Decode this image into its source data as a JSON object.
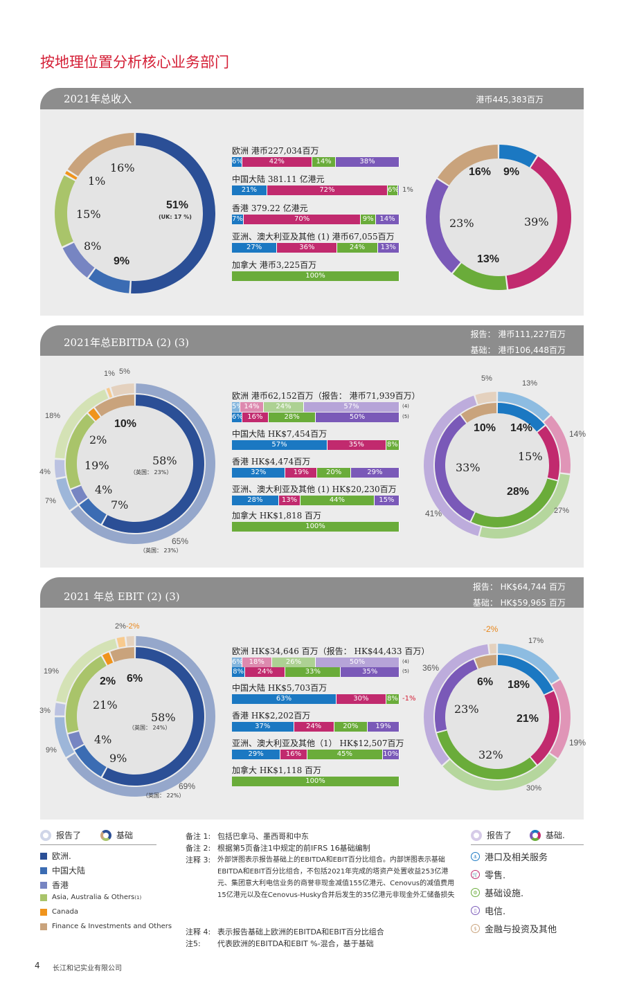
{
  "page": {
    "title": "按地理位置分析核心业务部门",
    "page_number": "4",
    "company": "长江和记实业有限公司"
  },
  "colors": {
    "europe": "#2b4f96",
    "china": "#3b6cb3",
    "hongkong": "#7785c2",
    "asia": "#a9c46a",
    "canada": "#f0941c",
    "finance": "#c9a37c",
    "ports": "#1b78c2",
    "retail": "#c12a6e",
    "infra": "#6aac3a",
    "telecom": "#7a59b8",
    "fin_other": "#c9a37c"
  },
  "chart_data": [
    {
      "type": "pie",
      "panel": "revenue-geo",
      "title": "2021年总收入",
      "total": "港币445,383百万",
      "slices": [
        {
          "name": "欧洲.",
          "value": 51,
          "label": "51%",
          "sub": "(UK: 17 %)"
        },
        {
          "name": "中国大陆",
          "value": 9,
          "label": "9%"
        },
        {
          "name": "香港",
          "value": 8,
          "label": "8%"
        },
        {
          "name": "Asia, Australia & Others",
          "value": 15,
          "label": "15%"
        },
        {
          "name": "Canada",
          "value": 1,
          "label": "1%"
        },
        {
          "name": "Finance & Investments and Others",
          "value": 16,
          "label": "16%"
        }
      ]
    },
    {
      "type": "bar",
      "panel": "revenue-regions",
      "rows": [
        {
          "label": "欧洲 港币227,034百万",
          "segments": [
            6,
            42,
            14,
            38
          ],
          "labels": [
            "6%",
            "42%",
            "14%",
            "38%"
          ]
        },
        {
          "label": "中国大陆 381.11 亿港元",
          "segments": [
            21,
            72,
            6,
            1
          ],
          "labels": [
            "21%",
            "72%",
            "6%",
            "1%"
          ]
        },
        {
          "label": "香港 379.22 亿港元",
          "segments": [
            7,
            70,
            9,
            14
          ],
          "labels": [
            "7%",
            "70%",
            "9%",
            "14%"
          ]
        },
        {
          "label": "亚洲、澳大利亚及其他 (1) 港币67,055百万",
          "segments": [
            27,
            36,
            24,
            13
          ],
          "labels": [
            "27%",
            "36%",
            "24%",
            "13%"
          ]
        },
        {
          "label": "加拿大 港币3,225百万",
          "segments": [
            0,
            0,
            100,
            0
          ],
          "labels": [
            "",
            "",
            "100%",
            ""
          ]
        }
      ]
    },
    {
      "type": "pie",
      "panel": "revenue-segment",
      "slices": [
        {
          "name": "港口及相关服务",
          "value": 9,
          "label": "9%"
        },
        {
          "name": "零售.",
          "value": 39,
          "label": "39%"
        },
        {
          "name": "基础设施.",
          "value": 13,
          "label": "13%"
        },
        {
          "name": "电信.",
          "value": 23,
          "label": "23%"
        },
        {
          "name": "金融与投资及其他",
          "value": 16,
          "label": "16%"
        }
      ]
    },
    {
      "type": "pie",
      "panel": "ebitda-geo",
      "title": "2021年总EBITDA (2) (3)",
      "total_reported": "报告：  港币111,227百万",
      "total_underlying": "基础：  港币106,448百万",
      "inner": [
        {
          "name": "欧洲.",
          "value": 58,
          "label": "58%",
          "sub": "（英国：  23%）"
        },
        {
          "name": "中国大陆",
          "value": 7,
          "label": "7%"
        },
        {
          "name": "香港",
          "value": 4,
          "label": "4%"
        },
        {
          "name": "Asia, Australia & Others",
          "value": 19,
          "label": "19%"
        },
        {
          "name": "Canada",
          "value": 2,
          "label": "2%"
        },
        {
          "name": "Finance & Investments and Others",
          "value": 10,
          "label": "10%"
        }
      ],
      "outer": [
        {
          "name": "欧洲.",
          "value": 65,
          "label": "65%",
          "sub": "（英国：  23%）"
        },
        {
          "name": "中国大陆",
          "value": 7,
          "label": "7%"
        },
        {
          "name": "香港",
          "value": 4,
          "label": "4%"
        },
        {
          "name": "Asia, Australia & Others",
          "value": 18,
          "label": "18%"
        },
        {
          "name": "Canada",
          "value": 1,
          "label": "1%"
        },
        {
          "name": "Finance & Investments and Others",
          "value": 5,
          "label": "5%"
        }
      ]
    },
    {
      "type": "bar",
      "panel": "ebitda-regions",
      "rows": [
        {
          "label": "欧洲 港币62,152百万（报告：  港币71,939百万）",
          "segments": [
            5,
            14,
            24,
            57
          ],
          "labels": [
            "5%",
            "14%",
            "24%",
            "57%"
          ],
          "note": "(4)",
          "light": true
        },
        {
          "label": "",
          "segments": [
            6,
            16,
            28,
            50
          ],
          "labels": [
            "6%",
            "16%",
            "28%",
            "50%"
          ],
          "note": "(5)"
        },
        {
          "label": "中国大陆 HK$7,454百万",
          "segments": [
            57,
            35,
            8,
            0
          ],
          "labels": [
            "57%",
            "35%",
            "8%",
            ""
          ]
        },
        {
          "label": "香港 HK$4,474百万",
          "segments": [
            32,
            19,
            20,
            29
          ],
          "labels": [
            "32%",
            "19%",
            "20%",
            "29%"
          ]
        },
        {
          "label": "亚洲、澳大利亚及其他 (1) HK$20,230百万",
          "segments": [
            28,
            13,
            44,
            15
          ],
          "labels": [
            "28%",
            "13%",
            "44%",
            "15%"
          ]
        },
        {
          "label": "加拿大 HK$1,818 百万",
          "segments": [
            0,
            0,
            100,
            0
          ],
          "labels": [
            "",
            "",
            "100%",
            ""
          ]
        }
      ]
    },
    {
      "type": "pie",
      "panel": "ebitda-segment",
      "inner": [
        {
          "name": "港口及相关服务",
          "value": 14,
          "label": "14%"
        },
        {
          "name": "零售.",
          "value": 15,
          "label": "15%"
        },
        {
          "name": "基础设施.",
          "value": 28,
          "label": "28%"
        },
        {
          "name": "电信.",
          "value": 33,
          "label": "33%"
        },
        {
          "name": "金融与投资及其他",
          "value": 10,
          "label": "10%"
        }
      ],
      "outer": [
        {
          "name": "港口及相关服务",
          "value": 13,
          "label": "13%"
        },
        {
          "name": "零售.",
          "value": 14,
          "label": "14%"
        },
        {
          "name": "基础设施.",
          "value": 27,
          "label": "27%"
        },
        {
          "name": "电信.",
          "value": 41,
          "label": "41%"
        },
        {
          "name": "金融与投资及其他",
          "value": 5,
          "label": "5%"
        }
      ]
    },
    {
      "type": "pie",
      "panel": "ebit-geo",
      "title": "2021 年总 EBIT (2) (3)",
      "total_reported": "报告：  HK$64,744 百万",
      "total_underlying": "基础：  HK$59,965 百万",
      "inner": [
        {
          "name": "欧洲.",
          "value": 58,
          "label": "58%",
          "sub": "（英国：  24%）"
        },
        {
          "name": "中国大陆",
          "value": 9,
          "label": "9%"
        },
        {
          "name": "香港",
          "value": 4,
          "label": "4%"
        },
        {
          "name": "Asia, Australia & Others",
          "value": 21,
          "label": "21%"
        },
        {
          "name": "Canada",
          "value": 2,
          "label": "2%"
        },
        {
          "name": "Finance & Investments and Others",
          "value": 6,
          "label": "6%"
        }
      ],
      "outer": [
        {
          "name": "欧洲.",
          "value": 69,
          "label": "69%",
          "sub": "（英国：  22%）"
        },
        {
          "name": "中国大陆",
          "value": 9,
          "label": "9%"
        },
        {
          "name": "香港",
          "value": 3,
          "label": "3%"
        },
        {
          "name": "Asia, Australia & Others",
          "value": 19,
          "label": "19%"
        },
        {
          "name": "Canada",
          "value": 2,
          "label": "2%"
        },
        {
          "name": "Finance & Investments and Others",
          "value": -2,
          "label": "-2%"
        }
      ]
    },
    {
      "type": "bar",
      "panel": "ebit-regions",
      "rows": [
        {
          "label": "欧洲 HK$34,646 百万（报告：  HK$44,433 百万）",
          "segments": [
            6,
            18,
            26,
            50
          ],
          "labels": [
            "6%",
            "18%",
            "26%",
            "50%"
          ],
          "note": "(4)",
          "light": true
        },
        {
          "label": "",
          "segments": [
            8,
            24,
            33,
            35
          ],
          "labels": [
            "8%",
            "24%",
            "33%",
            "35%"
          ],
          "note": "(5)"
        },
        {
          "label": "中国大陆 HK$5,703百万",
          "segments": [
            63,
            30,
            8,
            0
          ],
          "labels": [
            "63%",
            "30%",
            "8%",
            ""
          ],
          "extra": "-1%"
        },
        {
          "label": "香港 HK$2,202百万",
          "segments": [
            37,
            24,
            20,
            19
          ],
          "labels": [
            "37%",
            "24%",
            "20%",
            "19%"
          ]
        },
        {
          "label": "亚洲、澳大利亚及其他（1） HK$12,507百万",
          "segments": [
            29,
            16,
            45,
            10
          ],
          "labels": [
            "29%",
            "16%",
            "45%",
            "10%"
          ]
        },
        {
          "label": "加拿大 HK$1,118 百万",
          "segments": [
            0,
            0,
            100,
            0
          ],
          "labels": [
            "",
            "",
            "100%",
            ""
          ]
        }
      ]
    },
    {
      "type": "pie",
      "panel": "ebit-segment",
      "inner": [
        {
          "name": "港口及相关服务",
          "value": 18,
          "label": "18%"
        },
        {
          "name": "零售.",
          "value": 21,
          "label": "21%"
        },
        {
          "name": "基础设施.",
          "value": 32,
          "label": "32%"
        },
        {
          "name": "电信.",
          "value": 23,
          "label": "23%"
        },
        {
          "name": "金融与投资及其他",
          "value": 6,
          "label": "6%"
        }
      ],
      "outer": [
        {
          "name": "港口及相关服务",
          "value": 17,
          "label": "17%"
        },
        {
          "name": "零售.",
          "value": 19,
          "label": "19%"
        },
        {
          "name": "基础设施.",
          "value": 30,
          "label": "30%"
        },
        {
          "name": "电信.",
          "value": 36,
          "label": "36%"
        },
        {
          "name": "金融与投资及其他",
          "value": -2,
          "label": "-2%"
        }
      ]
    }
  ],
  "legend_geo": {
    "reported": "报告了",
    "underlying": "基础",
    "items": [
      {
        "label": "欧洲.",
        "color": "#2b4f96"
      },
      {
        "label": "中国大陆",
        "color": "#3b6cb3"
      },
      {
        "label": "香港",
        "color": "#7785c2"
      },
      {
        "label": "Asia, Australia & Others",
        "sup": "(1)",
        "color": "#a9c46a"
      },
      {
        "label": "Canada",
        "color": "#f0941c"
      },
      {
        "label": "Finance & Investments and Others",
        "color": "#c9a37c"
      }
    ]
  },
  "legend_segment": {
    "reported": "报告了",
    "underlying": "基础.",
    "items": [
      {
        "label": "港口及相关服务",
        "icon": "ship-icon",
        "color": "#1b78c2"
      },
      {
        "label": "零售.",
        "icon": "cart-icon",
        "color": "#c12a6e"
      },
      {
        "label": "基础设施.",
        "icon": "infrastructure-icon",
        "color": "#6aac3a"
      },
      {
        "label": "电信.",
        "icon": "phone-icon",
        "color": "#7a59b8"
      },
      {
        "label": "金融与投资及其他",
        "icon": "finance-icon",
        "color": "#c9a37c"
      }
    ]
  },
  "footnotes": [
    {
      "key": "备注 1:",
      "text": "包括巴拿马、墨西哥和中东"
    },
    {
      "key": "备注 2:",
      "text": "根据第5页备注1中规定的前IFRS 16基础编制"
    },
    {
      "key": "注释 3:",
      "text": "外部饼图表示报告基础上的EBITDA和EBIT百分比组合。内部饼图表示基础EBITDA和EBIT百分比组合，不包括2021年完成的塔资产处置收益253亿港元、集团意大利电信业务的商誉非现金减值155亿港元、Cenovus的减值费用15亿港元以及在Cenovus-Husky合并后发生的35亿港元非现金外汇储备损失"
    },
    {
      "key": "注释 4:",
      "text": "表示报告基础上欧洲的EBITDA和EBIT百分比组合"
    },
    {
      "key": "注5:",
      "text": "代表欧洲的EBITDA和EBIT %-混合，基于基础"
    }
  ]
}
